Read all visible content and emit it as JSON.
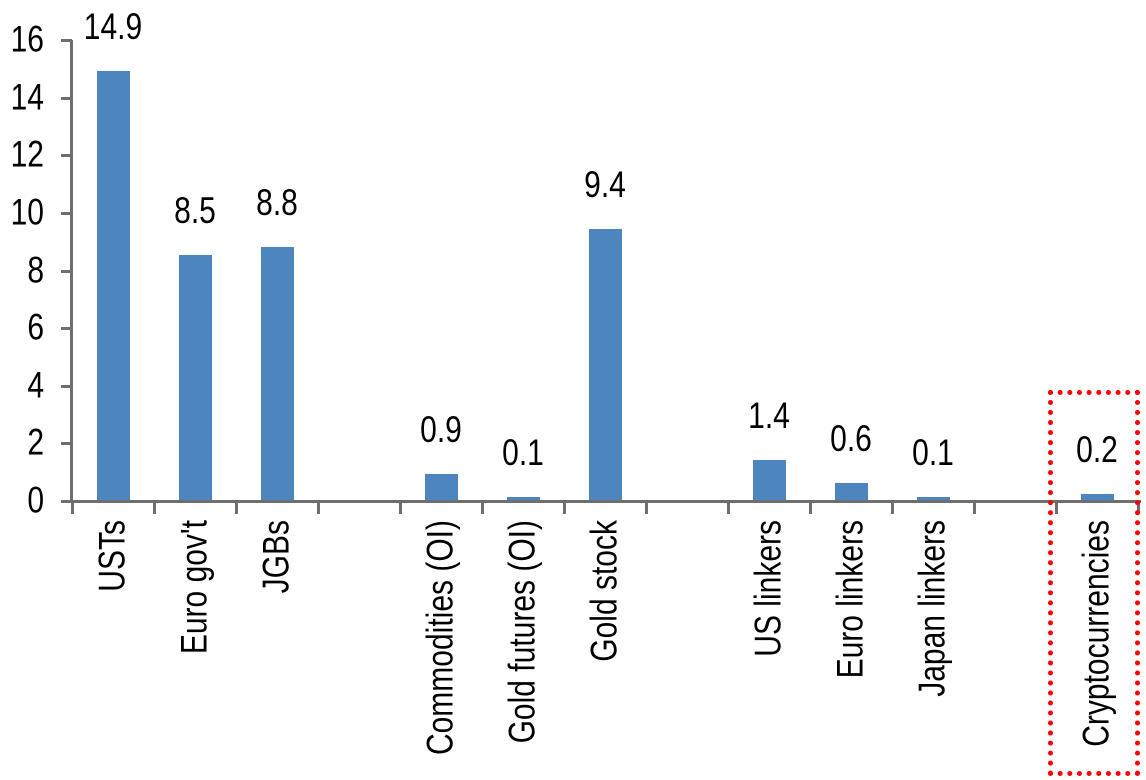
{
  "chart_data": {
    "type": "bar",
    "title": "",
    "xlabel": "",
    "ylabel": "",
    "categories": [
      "USTs",
      "Euro gov't",
      "JGBs",
      "Commodities (OI)",
      "Gold futures (OI)",
      "Gold stock",
      "US linkers",
      "Euro linkers",
      "Japan linkers",
      "Cryptocurrencies"
    ],
    "values": [
      14.9,
      8.5,
      8.8,
      0.9,
      0.1,
      9.4,
      1.4,
      0.6,
      0.1,
      0.2
    ],
    "bar_labels": [
      "14.9",
      "8.5",
      "8.8",
      "0.9",
      "0.1",
      "9.4",
      "1.4",
      "0.6",
      "0.1",
      "0.2"
    ],
    "slots": [
      0,
      1,
      2,
      4,
      5,
      6,
      8,
      9,
      10,
      12
    ],
    "slot_count": 13,
    "group_gaps_after": [
      "JGBs",
      "Gold stock",
      "Japan linkers"
    ],
    "ylim": [
      0,
      16
    ],
    "yticks": [
      0,
      2,
      4,
      6,
      8,
      10,
      12,
      14,
      16
    ],
    "ytick_labels": [
      "0",
      "2",
      "4",
      "6",
      "8",
      "10",
      "12",
      "14",
      "16"
    ],
    "grid": false,
    "legend": null,
    "x_tick_style": "category-boundary",
    "x_label_rotation_deg": 90,
    "colors": {
      "bar": "#4D86BE",
      "axis": "#6E6E6E",
      "text": "#000000",
      "highlight_box": "#FF0000",
      "background": "#FFFFFF"
    },
    "highlight": {
      "category": "Cryptocurrencies",
      "value": 0.2,
      "style": "red dotted rectangle enclosing the Cryptocurrencies column and label"
    }
  }
}
